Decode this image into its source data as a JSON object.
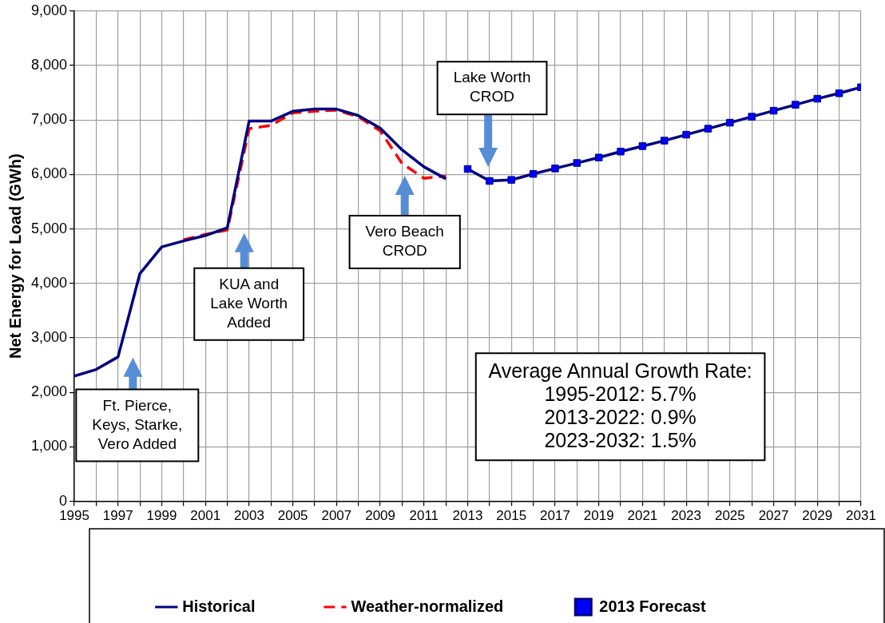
{
  "chart_data": {
    "type": "line",
    "ylabel": "Net Energy for Load (GWh)",
    "xlim": [
      1995,
      2031
    ],
    "xticks": [
      1995,
      {
        "value": 1996,
        "label": null
      },
      1997,
      {
        "value": 1998,
        "label": null
      },
      1999,
      {
        "value": 2000,
        "label": null
      },
      2001,
      {
        "value": 2002,
        "label": null
      },
      2003,
      {
        "value": 2004,
        "label": null
      },
      2005,
      {
        "value": 2006,
        "label": null
      },
      2007,
      {
        "value": 2008,
        "label": null
      },
      2009,
      {
        "value": 2010,
        "label": null
      },
      2011,
      {
        "value": 2012,
        "label": null
      },
      2013,
      {
        "value": 2014,
        "label": null
      },
      2015,
      {
        "value": 2016,
        "label": null
      },
      2017,
      {
        "value": 2018,
        "label": null
      },
      2019,
      {
        "value": 2020,
        "label": null
      },
      2021,
      {
        "value": 2022,
        "label": null
      },
      2023,
      {
        "value": 2024,
        "label": null
      },
      2025,
      {
        "value": 2026,
        "label": null
      },
      2027,
      {
        "value": 2028,
        "label": null
      },
      2029,
      {
        "value": 2030,
        "label": null
      },
      2031
    ],
    "ylim": [
      0,
      9000
    ],
    "yticks": [
      0,
      {
        "value": 1000,
        "label": "1,000"
      },
      {
        "value": 2000,
        "label": "2,000"
      },
      {
        "value": 3000,
        "label": "3,000"
      },
      {
        "value": 4000,
        "label": "4,000"
      },
      {
        "value": 5000,
        "label": "5,000"
      },
      {
        "value": 6000,
        "label": "6,000"
      },
      {
        "value": 7000,
        "label": "7,000"
      },
      {
        "value": 8000,
        "label": "8,000"
      },
      {
        "value": 9000,
        "label": "9,000"
      }
    ],
    "grid": true,
    "legend": "bottom",
    "series": [
      {
        "name": "Historical",
        "color": "#000080",
        "marker": "none",
        "line_style": "solid",
        "x": [
          1995,
          1996,
          1997,
          1998,
          1999,
          2000,
          2001,
          2002,
          2003,
          2004,
          2005,
          2006,
          2007,
          2008,
          2009,
          2010,
          2011,
          2012
        ],
        "values": [
          2300,
          2420,
          2650,
          4180,
          4670,
          4780,
          4880,
          5020,
          6980,
          6980,
          7160,
          7200,
          7200,
          7080,
          6850,
          6450,
          6140,
          5920
        ]
      },
      {
        "name": "Weather-normalized",
        "color": "#ff0000",
        "marker": "none",
        "line_style": "dashed",
        "x": [
          2000,
          2001,
          2002,
          2003,
          2004,
          2005,
          2006,
          2007,
          2008,
          2009,
          2010,
          2011,
          2012
        ],
        "values": [
          4800,
          4900,
          4980,
          6840,
          6900,
          7130,
          7160,
          7180,
          7060,
          6800,
          6200,
          5930,
          5970
        ]
      },
      {
        "name": "2013 Forecast",
        "color": "#000080",
        "marker": "square",
        "line_style": "solid",
        "x": [
          2013,
          2014,
          2015,
          2016,
          2017,
          2018,
          2019,
          2020,
          2021,
          2022,
          2023,
          2024,
          2025,
          2026,
          2027,
          2028,
          2029,
          2030,
          2031
        ],
        "values": [
          6100,
          5880,
          5900,
          6010,
          6110,
          6210,
          6310,
          6420,
          6520,
          6620,
          6730,
          6840,
          6950,
          7060,
          7170,
          7280,
          7390,
          7490,
          7600
        ]
      }
    ],
    "annotations": [
      "Ft. Pierce,\nKeys, Starke,\nVero Added",
      "KUA and\nLake Worth\nAdded",
      "Vero Beach\nCROD",
      "Lake Worth\nCROD",
      "Average Annual Growth Rate:\n1995-2012: 5.7%\n2013-2022: 0.9%\n2023-2032: 1.5%"
    ]
  }
}
